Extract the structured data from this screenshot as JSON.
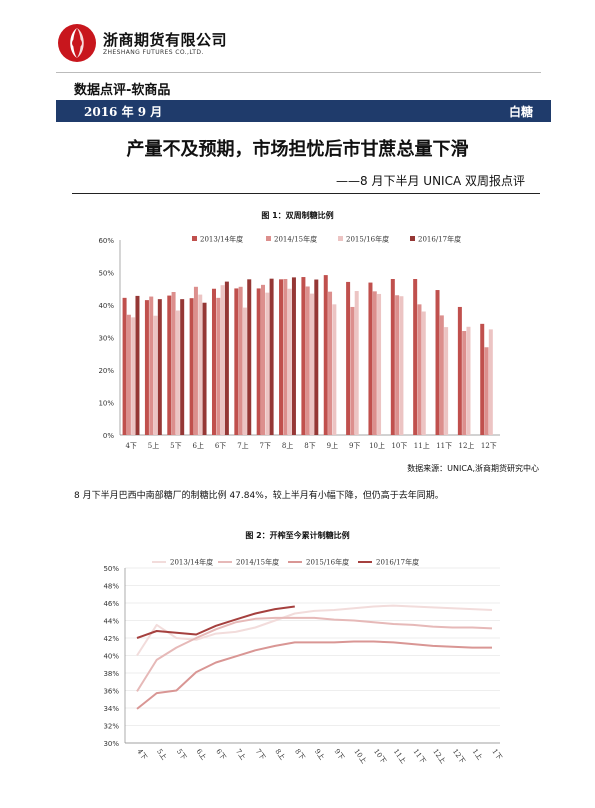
{
  "header": {
    "company_cn": "浙商期货有限公司",
    "company_en": "ZHESHANG FUTURES CO.,LTD.",
    "category": "数据点评-软商品",
    "date": "2016 年 9 月",
    "commodity": "白糖"
  },
  "report": {
    "title": "产量不及预期，市场担忧后市甘蔗总量下滑",
    "subtitle": "——8 月下半月 UNICA 双周报点评"
  },
  "figure1": {
    "caption": "图 1：双周制糖比例",
    "source": "数据来源：UNICA,浙商期货研究中心"
  },
  "paragraph": "8 月下半月巴西中南部糖厂的制糖比例 47.84%，较上半月有小幅下降，但仍高于去年同期。",
  "figure2": {
    "caption": "图 2：开榨至今累计制糖比例"
  },
  "chart_data": [
    {
      "type": "bar",
      "categories": [
        "4下",
        "5上",
        "5下",
        "6上",
        "6下",
        "7上",
        "7下",
        "8上",
        "8下",
        "9上",
        "9下",
        "10上",
        "10下",
        "11上",
        "11下",
        "12上",
        "12下"
      ],
      "series": [
        {
          "name": "2013/14年度",
          "color": "#c0504d",
          "values": [
            42.2,
            41.5,
            42.9,
            42.1,
            45.0,
            45.1,
            45.1,
            47.9,
            48.6,
            49.2,
            47.1,
            46.9,
            48.0,
            48.0,
            44.6,
            39.4,
            34.2
          ]
        },
        {
          "name": "2014/15年度",
          "color": "#dc8f8d",
          "values": [
            37.0,
            42.6,
            44.0,
            45.6,
            42.2,
            45.6,
            46.2,
            48.0,
            45.7,
            44.1,
            39.4,
            44.2,
            43.0,
            40.2,
            36.8,
            32.0,
            27.0
          ]
        },
        {
          "name": "2015/16年度",
          "color": "#ecc4c3",
          "values": [
            36.2,
            36.7,
            38.3,
            43.2,
            46.1,
            39.2,
            43.8,
            45.0,
            43.5,
            40.2,
            44.3,
            43.4,
            42.7,
            38.0,
            33.2,
            33.3,
            32.5
          ]
        },
        {
          "name": "2016/17年度",
          "color": "#953735",
          "values": [
            42.8,
            41.8,
            41.8,
            40.7,
            47.2,
            47.9,
            48.1,
            48.5,
            47.84,
            null,
            null,
            null,
            null,
            null,
            null,
            null,
            null
          ]
        }
      ],
      "ylim": [
        0,
        60
      ],
      "yticks": [
        "0%",
        "10%",
        "20%",
        "30%",
        "40%",
        "50%",
        "60%"
      ],
      "grid": false,
      "legend": "top"
    },
    {
      "type": "line",
      "categories": [
        "4下",
        "5上",
        "5下",
        "6上",
        "6下",
        "7上",
        "7下",
        "8上",
        "8下",
        "9上",
        "9下",
        "10上",
        "10下",
        "11上",
        "11下",
        "12上",
        "12下",
        "1上",
        "1下"
      ],
      "series": [
        {
          "name": "2013/14年度",
          "color": "#f2dcdb",
          "values": [
            40.0,
            43.5,
            42.0,
            41.8,
            42.5,
            42.7,
            43.2,
            44.0,
            44.8,
            45.1,
            45.2,
            45.4,
            45.6,
            45.7,
            45.6,
            45.5,
            45.4,
            45.3,
            45.2
          ]
        },
        {
          "name": "2014/15年度",
          "color": "#e6b9b8",
          "values": [
            35.9,
            39.5,
            40.9,
            42.0,
            43.0,
            43.8,
            44.2,
            44.3,
            44.3,
            44.3,
            44.1,
            44.0,
            43.8,
            43.6,
            43.5,
            43.3,
            43.2,
            43.2,
            43.1
          ]
        },
        {
          "name": "2015/16年度",
          "color": "#d99694",
          "values": [
            33.9,
            35.7,
            36.0,
            38.1,
            39.2,
            39.9,
            40.6,
            41.1,
            41.5,
            41.5,
            41.5,
            41.6,
            41.6,
            41.5,
            41.3,
            41.1,
            41.0,
            40.9,
            40.9
          ]
        },
        {
          "name": "2016/17年度",
          "color": "#a5403e",
          "values": [
            42.0,
            42.8,
            42.6,
            42.4,
            43.4,
            44.1,
            44.8,
            45.3,
            45.6,
            null,
            null,
            null,
            null,
            null,
            null,
            null,
            null,
            null,
            null
          ]
        }
      ],
      "ylim": [
        30,
        50
      ],
      "yticks": [
        "30%",
        "32%",
        "34%",
        "36%",
        "38%",
        "40%",
        "42%",
        "44%",
        "46%",
        "48%",
        "50%"
      ],
      "grid": true,
      "legend": "top"
    }
  ]
}
